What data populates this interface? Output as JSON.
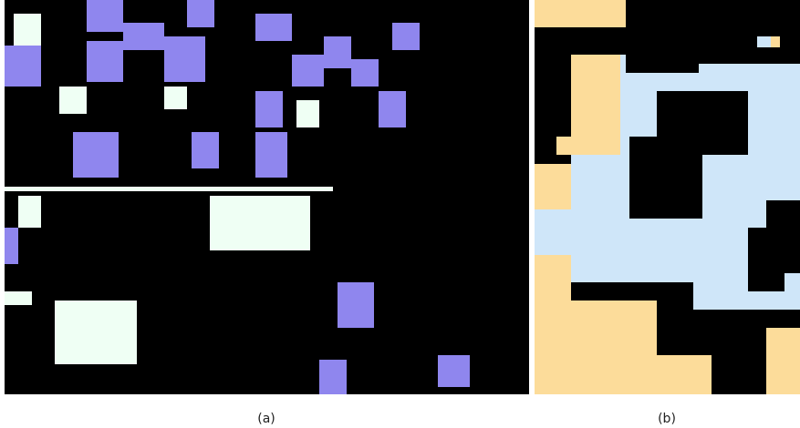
{
  "panels": [
    {
      "caption": "(a)"
    },
    {
      "caption": "(b)"
    }
  ]
}
